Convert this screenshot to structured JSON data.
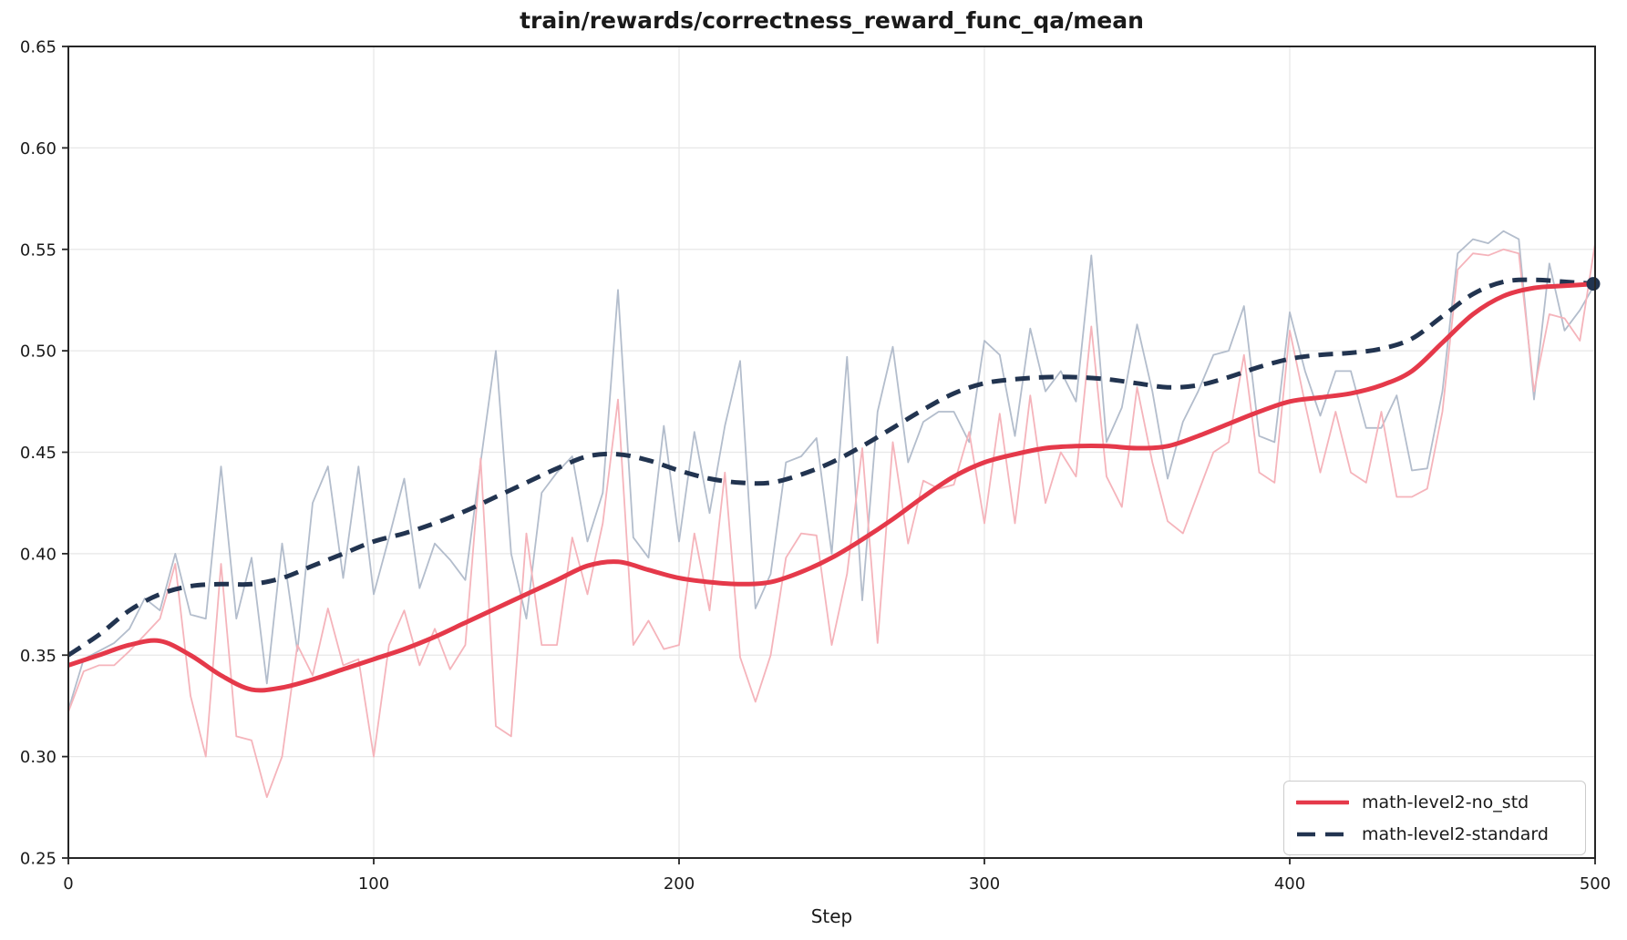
{
  "figure": {
    "title": "train/rewards/correctness_reward_func_qa/mean",
    "xlabel": "Step"
  },
  "legend": {
    "items": [
      {
        "label": "math-level2-no_std",
        "series_id": "no_std_smooth",
        "color": "#E5394A",
        "style": "solid"
      },
      {
        "label": "math-level2-standard",
        "series_id": "standard_smooth",
        "color": "#223450",
        "style": "dashed"
      }
    ]
  },
  "colors": {
    "background": "#FFFFFF",
    "grid": "#E7E7E7",
    "spine": "#262626",
    "text": "#1A1A1A",
    "red_smooth": "#E5394A",
    "red_raw": "#F5B4BB",
    "navy_smooth": "#223450",
    "navy_raw": "#B3BDCC",
    "legend_border": "#CCCCCC"
  },
  "chart_data": {
    "type": "line",
    "title": "train/rewards/correctness_reward_func_qa/mean",
    "xlabel": "Step",
    "ylabel": "",
    "xlim": [
      0,
      500
    ],
    "ylim": [
      0.25,
      0.65
    ],
    "x_ticks": [
      0,
      100,
      200,
      300,
      400,
      500
    ],
    "y_ticks": [
      0.25,
      0.3,
      0.35,
      0.4,
      0.45,
      0.5,
      0.55,
      0.6,
      0.65
    ],
    "grid": true,
    "legend_position": "lower right",
    "series": [
      {
        "id": "standard_raw",
        "name": "math-level2-standard (raw)",
        "role": "raw",
        "color": "#B3BDCC",
        "width": 1.8,
        "style": "solid",
        "smooth": false,
        "x_start": 0,
        "x_interval": 5,
        "values": [
          0.323,
          0.348,
          0.352,
          0.356,
          0.363,
          0.378,
          0.372,
          0.4,
          0.37,
          0.368,
          0.443,
          0.368,
          0.398,
          0.336,
          0.405,
          0.352,
          0.425,
          0.443,
          0.388,
          0.443,
          0.38,
          0.408,
          0.437,
          0.383,
          0.405,
          0.397,
          0.387,
          0.445,
          0.5,
          0.4,
          0.368,
          0.43,
          0.44,
          0.448,
          0.406,
          0.43,
          0.53,
          0.408,
          0.398,
          0.463,
          0.406,
          0.46,
          0.42,
          0.463,
          0.495,
          0.373,
          0.39,
          0.445,
          0.448,
          0.457,
          0.4,
          0.497,
          0.377,
          0.47,
          0.502,
          0.445,
          0.465,
          0.47,
          0.47,
          0.455,
          0.505,
          0.498,
          0.458,
          0.511,
          0.48,
          0.49,
          0.475,
          0.547,
          0.455,
          0.472,
          0.513,
          0.48,
          0.437,
          0.465,
          0.48,
          0.498,
          0.5,
          0.522,
          0.458,
          0.455,
          0.519,
          0.49,
          0.468,
          0.49,
          0.49,
          0.462,
          0.462,
          0.478,
          0.441,
          0.442,
          0.48,
          0.548,
          0.555,
          0.553,
          0.559,
          0.555,
          0.476,
          0.543,
          0.51,
          0.52,
          0.533
        ]
      },
      {
        "id": "no_std_raw",
        "name": "math-level2-no_std (raw)",
        "role": "raw",
        "color": "#F5B4BB",
        "width": 1.8,
        "style": "solid",
        "smooth": false,
        "x_start": 0,
        "x_interval": 5,
        "values": [
          0.322,
          0.342,
          0.345,
          0.345,
          0.352,
          0.36,
          0.368,
          0.395,
          0.33,
          0.3,
          0.395,
          0.31,
          0.308,
          0.28,
          0.3,
          0.355,
          0.34,
          0.373,
          0.345,
          0.348,
          0.3,
          0.355,
          0.372,
          0.345,
          0.363,
          0.343,
          0.355,
          0.447,
          0.315,
          0.31,
          0.41,
          0.355,
          0.355,
          0.408,
          0.38,
          0.415,
          0.476,
          0.355,
          0.367,
          0.353,
          0.355,
          0.41,
          0.372,
          0.44,
          0.349,
          0.327,
          0.35,
          0.398,
          0.41,
          0.409,
          0.355,
          0.39,
          0.452,
          0.356,
          0.455,
          0.405,
          0.436,
          0.432,
          0.434,
          0.46,
          0.415,
          0.469,
          0.415,
          0.478,
          0.425,
          0.45,
          0.438,
          0.512,
          0.438,
          0.423,
          0.482,
          0.445,
          0.416,
          0.41,
          0.43,
          0.45,
          0.455,
          0.498,
          0.44,
          0.435,
          0.51,
          0.474,
          0.44,
          0.47,
          0.44,
          0.435,
          0.47,
          0.428,
          0.428,
          0.432,
          0.47,
          0.54,
          0.548,
          0.547,
          0.55,
          0.548,
          0.48,
          0.518,
          0.516,
          0.505,
          0.553
        ]
      },
      {
        "id": "standard_smooth",
        "name": "math-level2-standard",
        "role": "smoothed",
        "color": "#223450",
        "width": 5,
        "style": "dashed",
        "smooth": true,
        "x_start": 0,
        "x_interval": 10,
        "values": [
          0.35,
          0.36,
          0.372,
          0.38,
          0.384,
          0.385,
          0.385,
          0.388,
          0.394,
          0.4,
          0.406,
          0.41,
          0.415,
          0.421,
          0.428,
          0.435,
          0.442,
          0.448,
          0.449,
          0.446,
          0.441,
          0.437,
          0.435,
          0.435,
          0.439,
          0.445,
          0.453,
          0.462,
          0.471,
          0.479,
          0.484,
          0.486,
          0.487,
          0.487,
          0.486,
          0.484,
          0.482,
          0.483,
          0.487,
          0.492,
          0.496,
          0.498,
          0.499,
          0.501,
          0.506,
          0.517,
          0.528,
          0.534,
          0.535,
          0.534,
          0.533
        ]
      },
      {
        "id": "no_std_smooth",
        "name": "math-level2-no_std",
        "role": "smoothed",
        "color": "#E5394A",
        "width": 5,
        "style": "solid",
        "smooth": true,
        "x_start": 0,
        "x_interval": 10,
        "values": [
          0.345,
          0.35,
          0.355,
          0.357,
          0.35,
          0.34,
          0.333,
          0.334,
          0.338,
          0.343,
          0.348,
          0.353,
          0.359,
          0.366,
          0.373,
          0.38,
          0.387,
          0.394,
          0.396,
          0.392,
          0.388,
          0.386,
          0.385,
          0.386,
          0.391,
          0.398,
          0.407,
          0.417,
          0.428,
          0.438,
          0.445,
          0.449,
          0.452,
          0.453,
          0.453,
          0.452,
          0.453,
          0.458,
          0.464,
          0.47,
          0.475,
          0.477,
          0.479,
          0.483,
          0.49,
          0.504,
          0.518,
          0.527,
          0.531,
          0.532,
          0.533
        ]
      }
    ],
    "end_marker": {
      "series_id": "standard_smooth",
      "x": 500,
      "y": 0.533,
      "color": "#223450",
      "radius": 7.5
    }
  }
}
